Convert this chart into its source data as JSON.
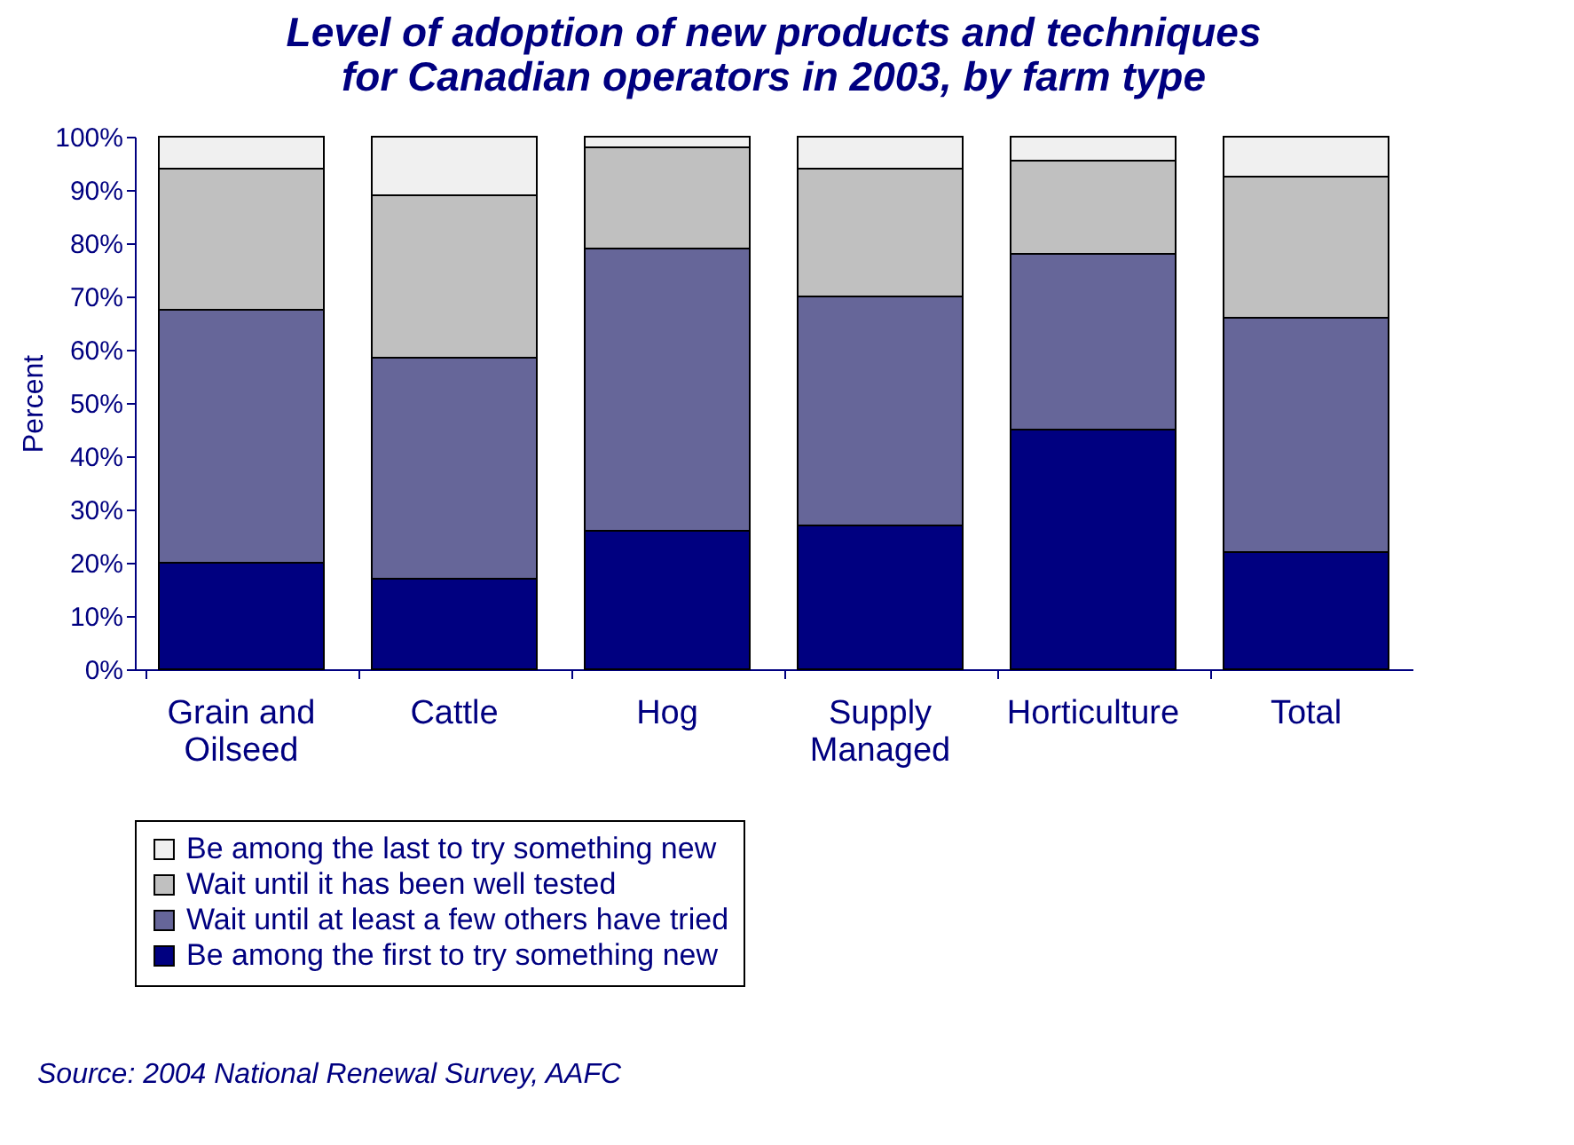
{
  "chart_data": {
    "type": "bar",
    "title": "Level of adoption of new products and techniques\nfor Canadian operators in 2003, by farm type",
    "ylabel": "Percent",
    "categories": [
      "Grain and Oilseed",
      "Cattle",
      "Hog",
      "Supply Managed",
      "Horticulture",
      "Total"
    ],
    "stacked": true,
    "series": [
      {
        "name": "Be among the first to try something new",
        "color": "#000080",
        "values": [
          20,
          17,
          26,
          27,
          45,
          22
        ]
      },
      {
        "name": "Wait until at least a few others have tried",
        "color": "#666699",
        "values": [
          47.5,
          41.5,
          53,
          43,
          33,
          44
        ]
      },
      {
        "name": "Wait until it has been well tested",
        "color": "#c0c0c0",
        "values": [
          26.5,
          30.5,
          19,
          24,
          17.5,
          26.5
        ]
      },
      {
        "name": "Be among the last to try something new",
        "color": "#f0f0f0",
        "values": [
          6,
          11,
          2,
          6,
          4.5,
          7.5
        ]
      }
    ],
    "ylim": [
      0,
      100
    ],
    "yticks": [
      {
        "value": 0,
        "label": "0%"
      },
      {
        "value": 10,
        "label": "10%"
      },
      {
        "value": 20,
        "label": "20%"
      },
      {
        "value": 30,
        "label": "30%"
      },
      {
        "value": 40,
        "label": "40%"
      },
      {
        "value": 50,
        "label": "50%"
      },
      {
        "value": 60,
        "label": "60%"
      },
      {
        "value": 70,
        "label": "70%"
      },
      {
        "value": 80,
        "label": "80%"
      },
      {
        "value": 90,
        "label": "90%"
      },
      {
        "value": 100,
        "label": "100%"
      }
    ],
    "grid": false,
    "legend": "bottom",
    "annotations": [
      "Source: 2004 National Renewal Survey, AAFC"
    ]
  }
}
